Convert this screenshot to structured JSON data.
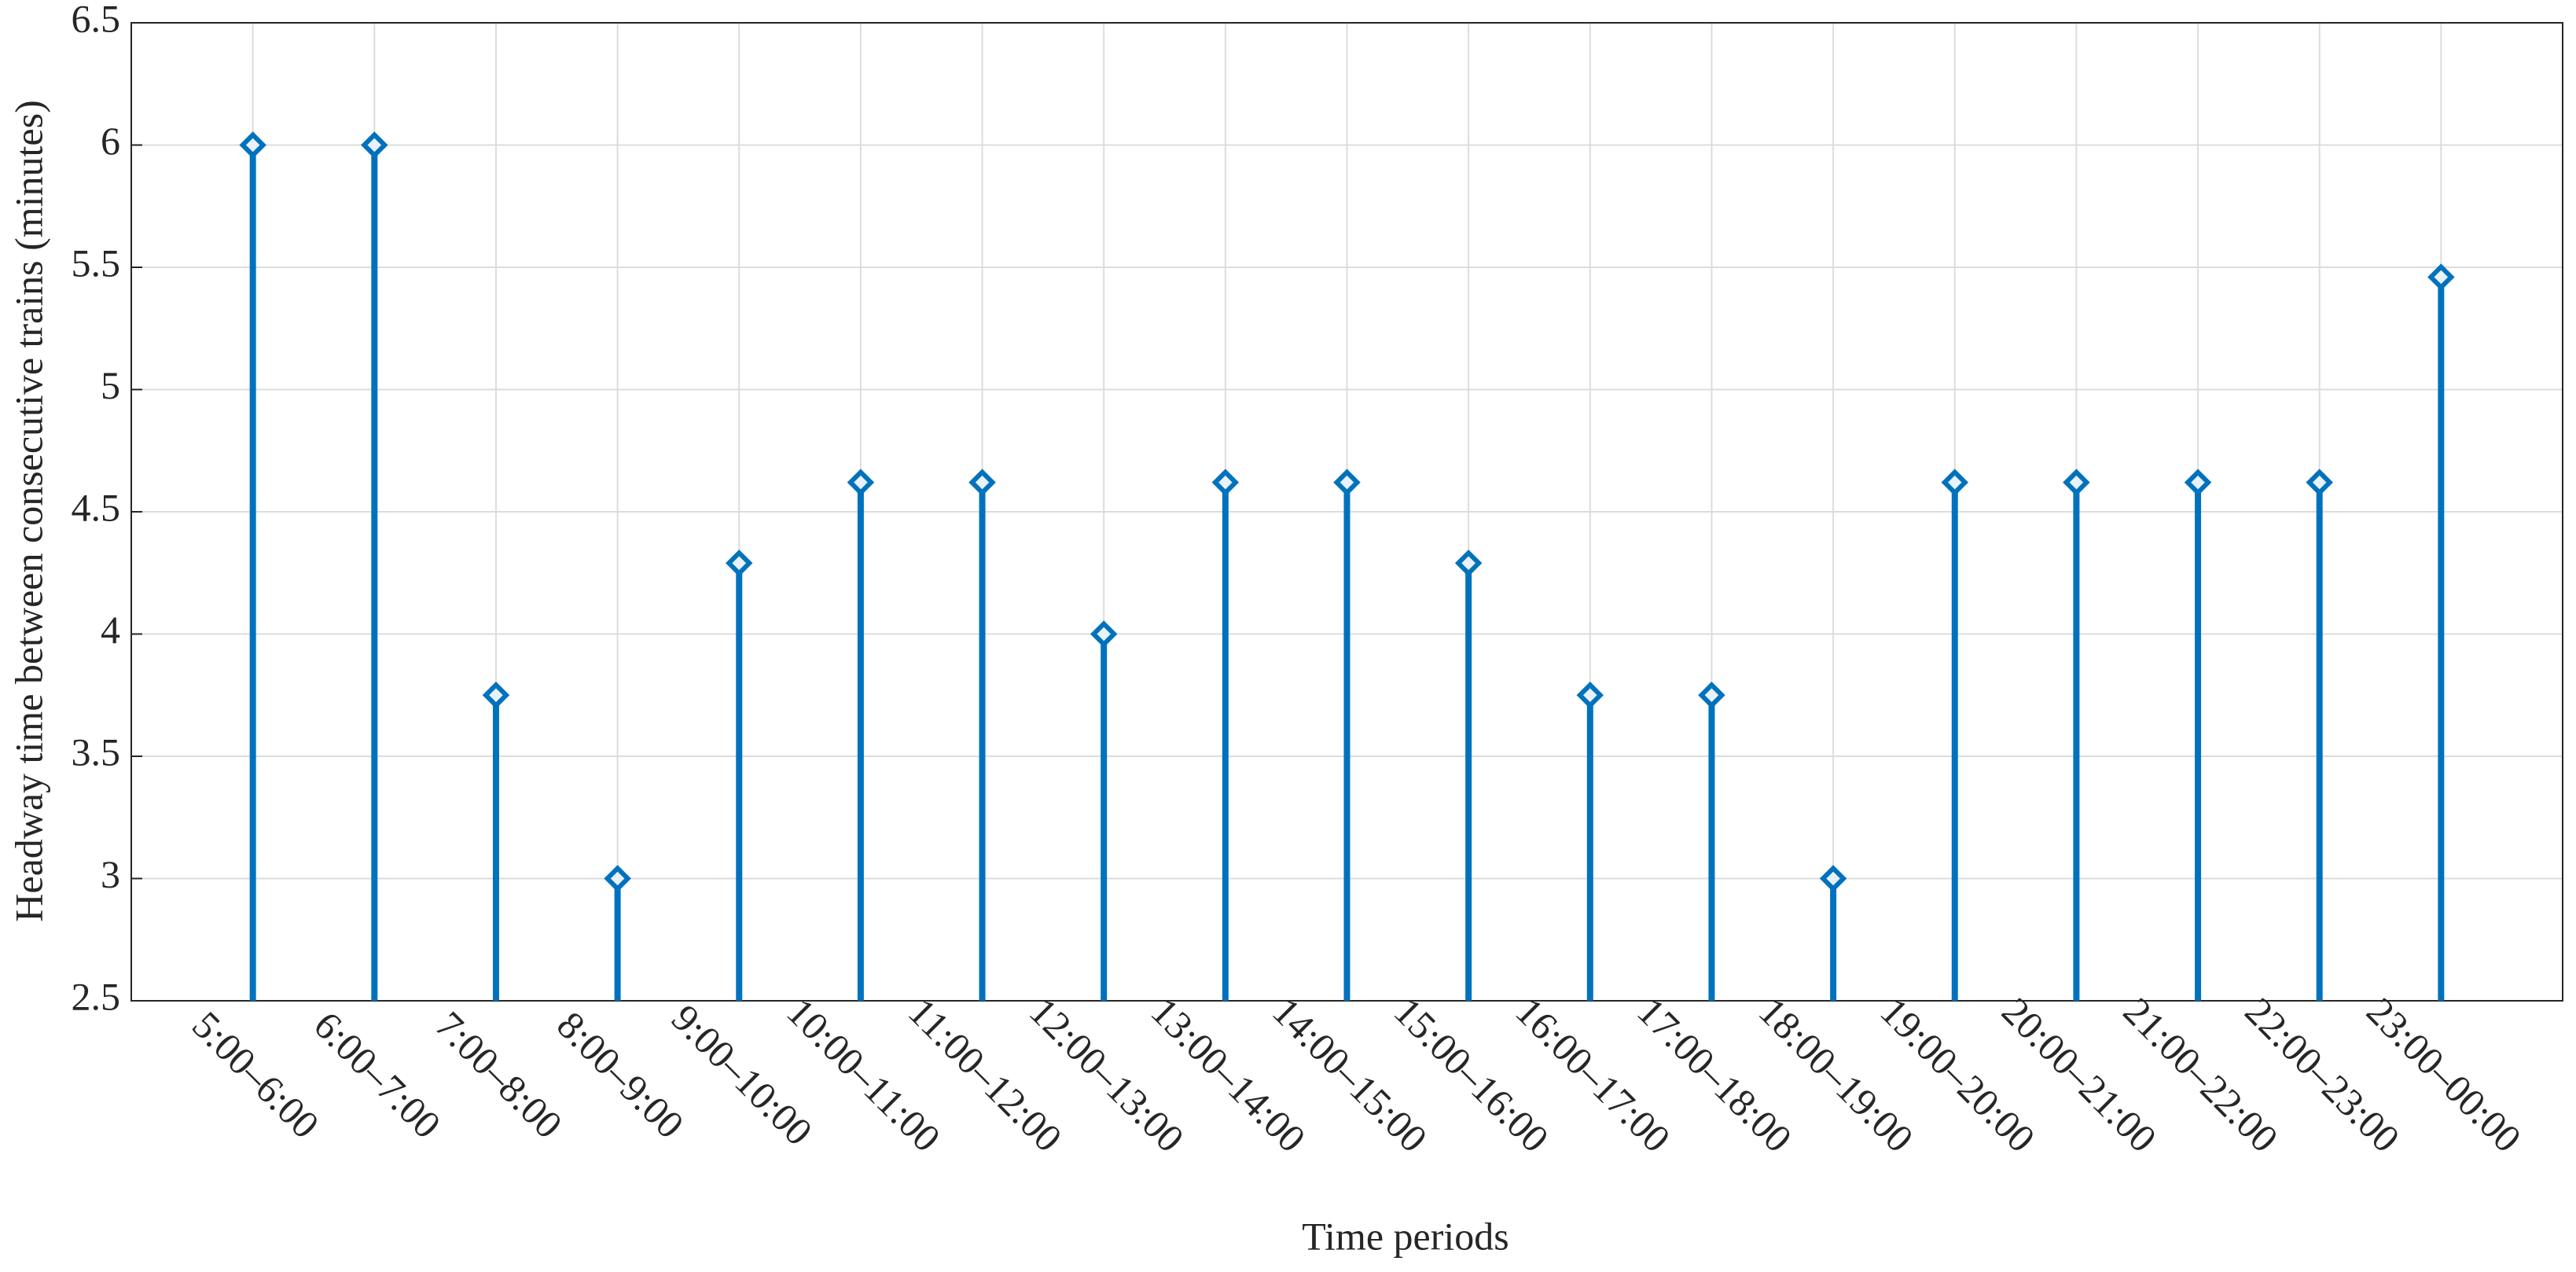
{
  "chart_data": {
    "type": "stem",
    "x_label": "Time periods",
    "y_label": "Headway time between consecutive trains (minutes)",
    "categories": [
      "5:00–6:00",
      "6:00–7:00",
      "7:00–8:00",
      "8:00–9:00",
      "9:00–10:00",
      "10:00–11:00",
      "11:00–12:00",
      "12:00–13:00",
      "13:00–14:00",
      "14:00–15:00",
      "15:00–16:00",
      "16:00–17:00",
      "17:00–18:00",
      "18:00–19:00",
      "19:00–20:00",
      "20:00–21:00",
      "21:00–22:00",
      "22:00–23:00",
      "23:00–00:00"
    ],
    "values": [
      6,
      6,
      3.75,
      3,
      4.29,
      4.62,
      4.62,
      4,
      4.62,
      4.62,
      4.29,
      3.75,
      3.75,
      3,
      4.62,
      4.62,
      4.62,
      4.62,
      5.46
    ],
    "color": "#0072bd",
    "ylim": [
      2.5,
      6.5
    ],
    "yticks": [
      2.5,
      3,
      3.5,
      4,
      4.5,
      5,
      5.5,
      6,
      6.5
    ],
    "grid": true
  }
}
